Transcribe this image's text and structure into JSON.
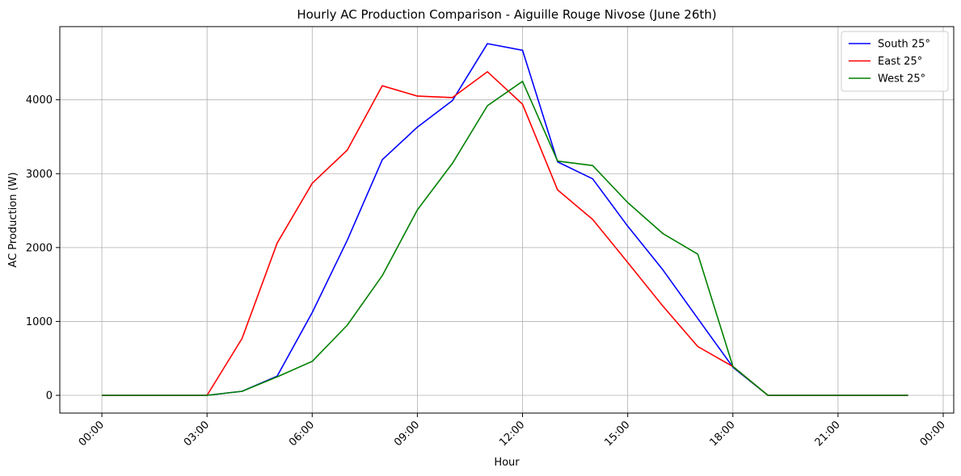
{
  "chart_data": {
    "type": "line",
    "title": "Hourly AC Production Comparison - Aiguille Rouge Nivose (June 26th)",
    "xlabel": "Hour",
    "ylabel": "AC Production (W)",
    "x": [
      0,
      1,
      2,
      3,
      4,
      5,
      6,
      7,
      8,
      9,
      10,
      11,
      12,
      13,
      14,
      15,
      16,
      17,
      18,
      19,
      20,
      21,
      22,
      23
    ],
    "x_ticks": [
      {
        "value": 0,
        "label": "00:00"
      },
      {
        "value": 3,
        "label": "03:00"
      },
      {
        "value": 6,
        "label": "06:00"
      },
      {
        "value": 9,
        "label": "09:00"
      },
      {
        "value": 12,
        "label": "12:00"
      },
      {
        "value": 15,
        "label": "15:00"
      },
      {
        "value": 18,
        "label": "18:00"
      },
      {
        "value": 21,
        "label": "21:00"
      },
      {
        "value": 24,
        "label": "00:00"
      }
    ],
    "y_ticks": [
      {
        "value": 0,
        "label": "0"
      },
      {
        "value": 1000,
        "label": "1000"
      },
      {
        "value": 2000,
        "label": "2000"
      },
      {
        "value": 3000,
        "label": "3000"
      },
      {
        "value": 4000,
        "label": "4000"
      }
    ],
    "xlim": [
      -1.2,
      24.3
    ],
    "ylim": [
      -240,
      4990
    ],
    "grid": true,
    "legend_position": "top-right",
    "series": [
      {
        "name": "South 25°",
        "color": "#0000ff",
        "values": [
          0,
          0,
          0,
          0,
          55,
          260,
          1120,
          2100,
          3190,
          3630,
          3990,
          4760,
          4670,
          3160,
          2930,
          2290,
          1700,
          1040,
          380,
          0,
          0,
          0,
          0,
          0
        ]
      },
      {
        "name": "East 25°",
        "color": "#ff0000",
        "values": [
          0,
          0,
          0,
          0,
          770,
          2060,
          2870,
          3320,
          4190,
          4050,
          4030,
          4380,
          3940,
          2780,
          2380,
          1800,
          1210,
          660,
          390,
          0,
          0,
          0,
          0,
          0
        ]
      },
      {
        "name": "West 25°",
        "color": "#008000",
        "values": [
          0,
          0,
          0,
          0,
          55,
          250,
          460,
          950,
          1620,
          2510,
          3140,
          3920,
          4250,
          3170,
          3110,
          2610,
          2190,
          1910,
          390,
          0,
          0,
          0,
          0,
          0
        ]
      }
    ]
  }
}
